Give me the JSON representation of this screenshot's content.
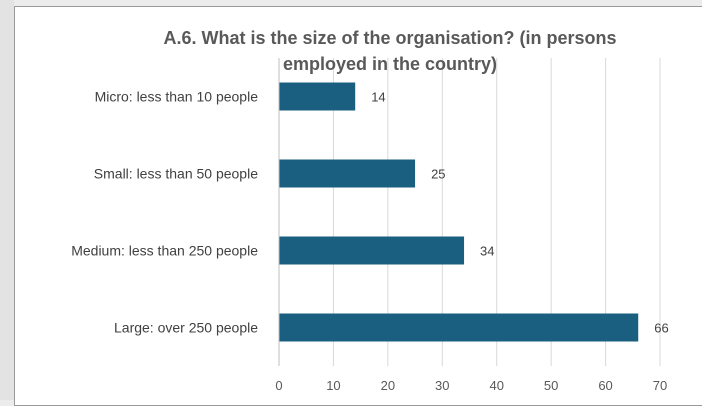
{
  "chart_data": {
    "type": "bar",
    "orientation": "horizontal",
    "title": "A.6. What is the size of the organisation? (in persons employed in the country)",
    "title_lines": [
      "A.6. What is the size of the organisation? (in persons",
      "employed in the country)"
    ],
    "categories": [
      "Micro: less than 10 people",
      "Small: less than 50 people",
      "Medium: less than 250 people",
      "Large: over 250 people"
    ],
    "values": [
      14,
      25,
      34,
      66
    ],
    "xlim": [
      0,
      70
    ],
    "xticks": [
      0,
      10,
      20,
      30,
      40,
      50,
      60,
      70
    ],
    "grid": true,
    "bar_color": "#1a5f80",
    "grid_color": "#d9d9d9",
    "xlabel": "",
    "ylabel": ""
  }
}
